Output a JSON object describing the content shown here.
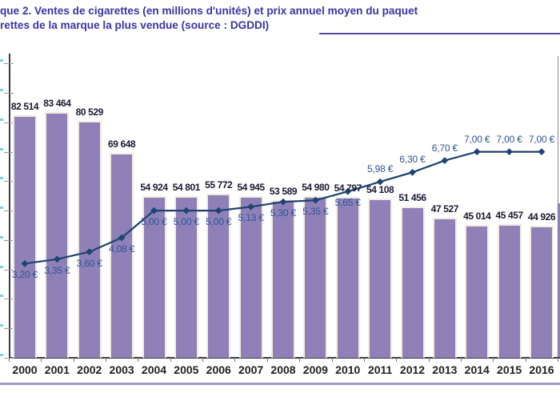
{
  "title": {
    "line1": "que 2. Ventes de cigarettes (en millions d'unités) et prix annuel moyen du paquet",
    "line2": "rettes de la marque la plus vendue (source : DGDDI)"
  },
  "chart_data": {
    "type": "bar",
    "subtype": "combo bar + line, dual implicit scales, no visible axis value labels",
    "categories": [
      "2000",
      "2001",
      "2002",
      "2003",
      "2004",
      "2005",
      "2006",
      "2007",
      "2008",
      "2009",
      "2010",
      "2011",
      "2012",
      "2013",
      "2014",
      "2015",
      "2016"
    ],
    "series": [
      {
        "name": "Ventes de cigarettes (en millions d'unités)",
        "type": "bar",
        "values": [
          82514,
          83464,
          80529,
          69648,
          54924,
          54801,
          55772,
          54945,
          53589,
          54980,
          54797,
          54108,
          51456,
          47527,
          45014,
          45457,
          44926
        ],
        "labels": [
          "82 514",
          "83 464",
          "80 529",
          "69 648",
          "54 924",
          "54 801",
          "55 772",
          "54 945",
          "53 589",
          "54 980",
          "54 797",
          "54 108",
          "51 456",
          "47 527",
          "45 014",
          "45 457",
          "44 926"
        ]
      },
      {
        "name": "Prix annuel moyen du paquet de cigarettes de la marque la plus vendue (€)",
        "type": "line",
        "values": [
          3.2,
          3.35,
          3.6,
          4.08,
          5.0,
          5.0,
          5.0,
          5.13,
          5.3,
          5.35,
          5.65,
          5.98,
          6.3,
          6.7,
          7.0,
          7.0,
          7.0
        ],
        "labels": [
          "3,20 €",
          "3,35 €",
          "3,60 €",
          "4,08 €",
          "5,00 €",
          "5,00 €",
          "5,00 €",
          "5,13 €",
          "5,30 €",
          "5,35 €",
          "5,65 €",
          "5,98 €",
          "6,30 €",
          "6,70 €",
          "7,00 €",
          "7,00 €",
          "7,00 €"
        ]
      }
    ],
    "xlabel": "",
    "ylabel": "",
    "y_axis": {
      "min": 0,
      "max": 100000,
      "tick_step": 10000,
      "tick_labels_visible": false
    },
    "y2_axis": {
      "min": 0,
      "max": 10,
      "unit": "€",
      "tick_labels_visible": false
    },
    "grid": "off",
    "legend": "none",
    "source": "DGDDI"
  },
  "colors": {
    "bar_fill": "#8f81b8",
    "bar_edge": "#f1ecdf",
    "line": "#1f4373",
    "price_label": "#2d5196",
    "value_label": "#191932",
    "title_text": "#3a34a3",
    "title_rule": "#564ba0",
    "bottom_rule": "#a198cb",
    "axis": "#3b3b44",
    "tick": "#9a9a9a",
    "x_tick": "#777777",
    "cyan_tick": "#7ed0dd",
    "edge_axis": "#8a8a8a"
  }
}
